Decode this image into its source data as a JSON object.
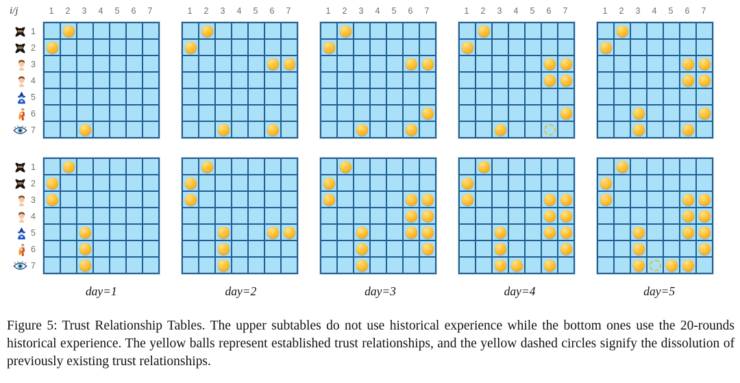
{
  "figure": {
    "corner_label": "i/j",
    "col_headers": [
      "1",
      "2",
      "3",
      "4",
      "5",
      "6",
      "7"
    ],
    "row_headers": [
      "1",
      "2",
      "3",
      "4",
      "5",
      "6",
      "7"
    ],
    "row_icons": [
      "ninja",
      "ninja",
      "person",
      "person",
      "wizard",
      "hero",
      "eye"
    ],
    "days": [
      "day=1",
      "day=2",
      "day=3",
      "day=4",
      "day=5"
    ],
    "top_grids": [
      {
        "day": "day=1",
        "balls": [
          [
            1,
            2
          ],
          [
            2,
            1
          ],
          [
            7,
            3
          ]
        ],
        "dashed": []
      },
      {
        "day": "day=2",
        "balls": [
          [
            1,
            2
          ],
          [
            2,
            1
          ],
          [
            3,
            6
          ],
          [
            3,
            7
          ],
          [
            7,
            3
          ],
          [
            7,
            6
          ]
        ],
        "dashed": []
      },
      {
        "day": "day=3",
        "balls": [
          [
            1,
            2
          ],
          [
            2,
            1
          ],
          [
            3,
            6
          ],
          [
            3,
            7
          ],
          [
            6,
            7
          ],
          [
            7,
            3
          ],
          [
            7,
            6
          ]
        ],
        "dashed": []
      },
      {
        "day": "day=4",
        "balls": [
          [
            1,
            2
          ],
          [
            2,
            1
          ],
          [
            3,
            6
          ],
          [
            3,
            7
          ],
          [
            4,
            6
          ],
          [
            4,
            7
          ],
          [
            6,
            7
          ],
          [
            7,
            3
          ]
        ],
        "dashed": [
          [
            7,
            6
          ]
        ]
      },
      {
        "day": "day=5",
        "balls": [
          [
            1,
            2
          ],
          [
            2,
            1
          ],
          [
            3,
            6
          ],
          [
            3,
            7
          ],
          [
            4,
            6
          ],
          [
            4,
            7
          ],
          [
            6,
            3
          ],
          [
            6,
            7
          ],
          [
            7,
            3
          ],
          [
            7,
            6
          ]
        ],
        "dashed": []
      }
    ],
    "bottom_grids": [
      {
        "day": "day=1",
        "balls": [
          [
            1,
            2
          ],
          [
            2,
            1
          ],
          [
            3,
            1
          ],
          [
            5,
            3
          ],
          [
            6,
            3
          ],
          [
            7,
            3
          ]
        ],
        "dashed": []
      },
      {
        "day": "day=2",
        "balls": [
          [
            1,
            2
          ],
          [
            2,
            1
          ],
          [
            3,
            1
          ],
          [
            5,
            3
          ],
          [
            5,
            6
          ],
          [
            5,
            7
          ],
          [
            6,
            3
          ],
          [
            7,
            3
          ]
        ],
        "dashed": []
      },
      {
        "day": "day=3",
        "balls": [
          [
            1,
            2
          ],
          [
            2,
            1
          ],
          [
            3,
            1
          ],
          [
            3,
            6
          ],
          [
            3,
            7
          ],
          [
            4,
            6
          ],
          [
            4,
            7
          ],
          [
            5,
            3
          ],
          [
            5,
            6
          ],
          [
            5,
            7
          ],
          [
            6,
            3
          ],
          [
            6,
            7
          ],
          [
            7,
            3
          ]
        ],
        "dashed": []
      },
      {
        "day": "day=4",
        "balls": [
          [
            1,
            2
          ],
          [
            2,
            1
          ],
          [
            3,
            1
          ],
          [
            3,
            6
          ],
          [
            3,
            7
          ],
          [
            4,
            6
          ],
          [
            4,
            7
          ],
          [
            5,
            3
          ],
          [
            5,
            6
          ],
          [
            5,
            7
          ],
          [
            6,
            3
          ],
          [
            6,
            7
          ],
          [
            7,
            3
          ],
          [
            7,
            4
          ],
          [
            7,
            6
          ]
        ],
        "dashed": []
      },
      {
        "day": "day=5",
        "balls": [
          [
            1,
            2
          ],
          [
            2,
            1
          ],
          [
            3,
            1
          ],
          [
            3,
            6
          ],
          [
            3,
            7
          ],
          [
            4,
            6
          ],
          [
            4,
            7
          ],
          [
            5,
            3
          ],
          [
            5,
            6
          ],
          [
            5,
            7
          ],
          [
            6,
            3
          ],
          [
            6,
            7
          ],
          [
            7,
            3
          ],
          [
            7,
            5
          ],
          [
            7,
            6
          ]
        ],
        "dashed": [
          [
            7,
            4
          ]
        ]
      }
    ]
  },
  "colors": {
    "cell_fill": "#abe1f8",
    "grid_line": "#1f5f93",
    "ball": "#ffb425",
    "ball_highlight": "#ffe289",
    "dashed_circle": "#d9c23e",
    "header_text": "#6e6e6e",
    "caption_text": "#111111"
  },
  "caption": {
    "text": "Figure 5: Trust Relationship Tables. The upper subtables do not use historical experience while the bottom ones use the 20-rounds historical experience. The yellow balls represent established trust relationships, and the yellow dashed circles signify the dissolution of previously existing trust relationships."
  }
}
